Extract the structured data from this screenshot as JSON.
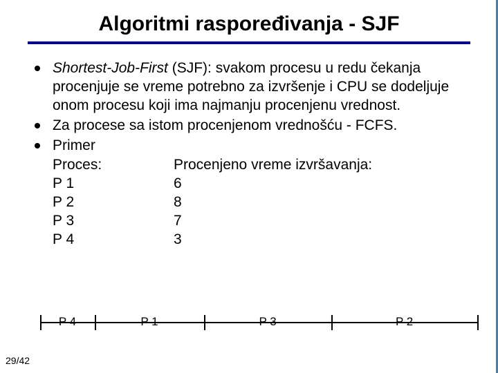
{
  "title": "Algoritmi raspoređivanja - SJF",
  "hr_color": "#000080",
  "bullets": [
    {
      "lead_italic": "Shortest-Job-First",
      "rest": " (SJF): svakom procesu u redu čekanja procenjuje se vreme  potrebno za izvršenje i CPU se dodeljuje onom procesu koji ima najmanju procenjenu vrednost."
    },
    {
      "text": "Za procese sa istom procenjenom vrednošću - FCFS."
    },
    {
      "text": "Primer"
    }
  ],
  "table_header": {
    "col1": "Proces:",
    "col2": "Procenjeno vreme izvršavanja:"
  },
  "rows": [
    {
      "p": "P 1",
      "v": "6"
    },
    {
      "p": "P 2",
      "v": "8"
    },
    {
      "p": "P 3",
      "v": "7"
    },
    {
      "p": "P 4",
      "v": "3"
    }
  ],
  "timeline": {
    "total": 24,
    "ticks_at": [
      0,
      3,
      9,
      16,
      24
    ],
    "segments": [
      {
        "label": "P 4",
        "center_pct": 6.25
      },
      {
        "label": "P 1",
        "center_pct": 25.0
      },
      {
        "label": "P 3",
        "center_pct": 52.08
      },
      {
        "label": "P 2",
        "center_pct": 83.33
      }
    ]
  },
  "page": "29/42",
  "band_color": "#4a7fa8"
}
